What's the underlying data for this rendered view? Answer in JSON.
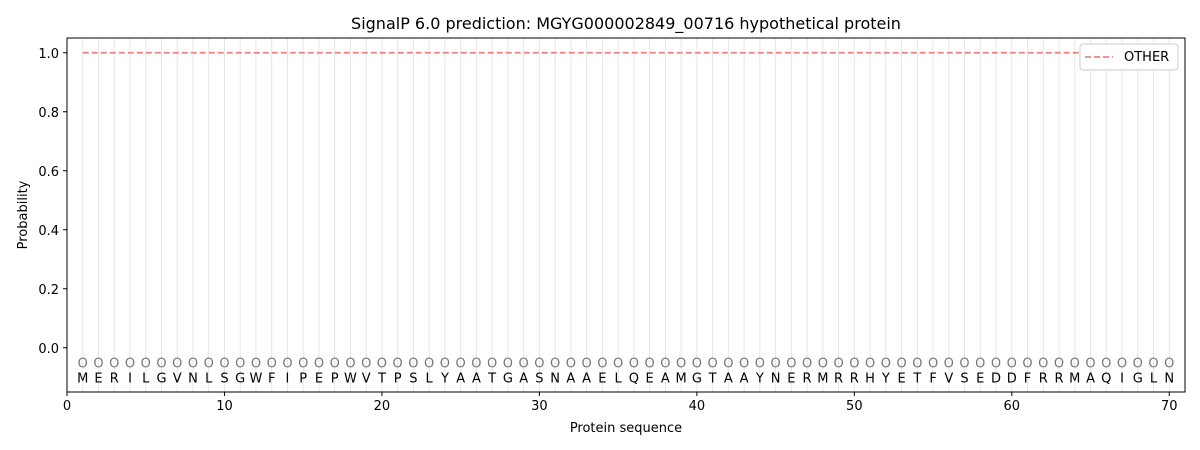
{
  "chart_data": {
    "type": "line",
    "title": "SignalP 6.0 prediction: MGYG000002849_00716 hypothetical protein",
    "xlabel": "Protein sequence",
    "ylabel": "Probability",
    "xlim": [
      0,
      71
    ],
    "ylim": [
      -0.15,
      1.05
    ],
    "xticks": [
      0,
      10,
      20,
      30,
      40,
      50,
      60,
      70
    ],
    "yticks": [
      0.0,
      0.2,
      0.4,
      0.6,
      0.8,
      1.0
    ],
    "ytick_labels": [
      "0.0",
      "0.2",
      "0.4",
      "0.6",
      "0.8",
      "1.0"
    ],
    "sequence": [
      "M",
      "E",
      "R",
      "I",
      "L",
      "G",
      "V",
      "N",
      "L",
      "S",
      "G",
      "W",
      "F",
      "I",
      "P",
      "E",
      "P",
      "W",
      "V",
      "T",
      "P",
      "S",
      "L",
      "Y",
      "A",
      "A",
      "T",
      "G",
      "A",
      "S",
      "N",
      "A",
      "A",
      "E",
      "L",
      "Q",
      "E",
      "A",
      "M",
      "G",
      "T",
      "A",
      "A",
      "Y",
      "N",
      "E",
      "R",
      "M",
      "R",
      "R",
      "H",
      "Y",
      "E",
      "T",
      "F",
      "V",
      "S",
      "E",
      "D",
      "D",
      "F",
      "R",
      "R",
      "M",
      "A",
      "Q",
      "I",
      "G",
      "L",
      "N"
    ],
    "predicted_label": "O",
    "series": [
      {
        "name": "OTHER",
        "color": "#f08080",
        "style": "dashed",
        "x_start": 1,
        "x_end": 70,
        "value": 1.0
      }
    ],
    "legend_position": "top-right",
    "grid": "vertical lines at each residue"
  }
}
